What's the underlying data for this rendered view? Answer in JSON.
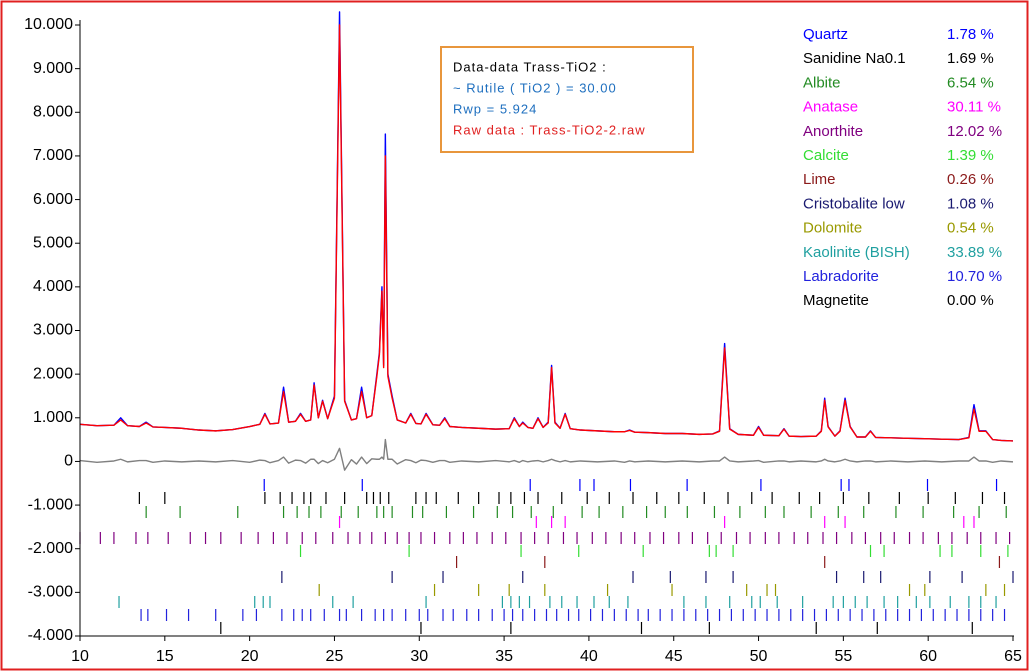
{
  "chart_data": {
    "type": "line",
    "annotations": [
      "Data-data Trass-TiO2 :",
      "~ Rutile ( TiO2 ) = 30.00",
      "Rwp = 5.924",
      "Raw data : Trass-TiO2-2.raw"
    ],
    "xlim": [
      10,
      65
    ],
    "xticks": [
      10,
      15,
      20,
      25,
      30,
      35,
      40,
      45,
      50,
      55,
      60,
      65
    ],
    "ylim": [
      -4000,
      10000
    ],
    "yticks": [
      {
        "value": 10000,
        "label": "10.000"
      },
      {
        "value": 9000,
        "label": "9.000"
      },
      {
        "value": 8000,
        "label": "8.000"
      },
      {
        "value": 7000,
        "label": "7.000"
      },
      {
        "value": 6000,
        "label": "6.000"
      },
      {
        "value": 5000,
        "label": "5.000"
      },
      {
        "value": 4000,
        "label": "4.000"
      },
      {
        "value": 3000,
        "label": "3.000"
      },
      {
        "value": 2000,
        "label": "2.000"
      },
      {
        "value": 1000,
        "label": "1.000"
      },
      0,
      {
        "value": -1000,
        "label": "-1.000"
      },
      {
        "value": -2000,
        "label": "-2.000"
      },
      {
        "value": -3000,
        "label": "-3.000"
      },
      {
        "value": -4000,
        "label": "-4.000"
      }
    ],
    "x": [
      10,
      11,
      12,
      12.4,
      12.8,
      13.5,
      13.9,
      14.3,
      15,
      16,
      17,
      18,
      19,
      20,
      20.6,
      20.9,
      21.2,
      21.7,
      22.0,
      22.3,
      22.7,
      23.0,
      23.3,
      23.6,
      23.8,
      24.05,
      24.3,
      24.6,
      25.0,
      25.3,
      25.6,
      26.0,
      26.3,
      26.6,
      26.9,
      27.2,
      27.5,
      27.65,
      27.8,
      27.9,
      28.0,
      28.15,
      28.4,
      28.7,
      29.2,
      29.5,
      29.8,
      30.1,
      30.4,
      30.8,
      31.2,
      31.5,
      31.8,
      32.5,
      33.5,
      34.5,
      35.3,
      35.6,
      35.9,
      36.1,
      36.4,
      36.7,
      37.0,
      37.3,
      37.6,
      37.8,
      38.0,
      38.3,
      38.6,
      38.9,
      39.5,
      40.5,
      41.5,
      42.1,
      42.4,
      42.7,
      43.5,
      44.5,
      45.5,
      46.5,
      47.3,
      47.7,
      48.0,
      48.3,
      48.8,
      49.7,
      50.0,
      50.3,
      51.2,
      51.5,
      51.8,
      52.5,
      53.4,
      53.7,
      53.9,
      54.1,
      54.5,
      54.8,
      55.1,
      55.4,
      55.8,
      56.3,
      56.6,
      56.9,
      57.8,
      58.8,
      59.8,
      60.8,
      61.8,
      62.4,
      62.7,
      63.0,
      63.4,
      63.8,
      64.3,
      65
    ],
    "series": [
      {
        "color": "#0000ff",
        "values": [
          850,
          820,
          830,
          1000,
          820,
          800,
          900,
          790,
          780,
          760,
          720,
          700,
          730,
          800,
          850,
          1100,
          860,
          880,
          1700,
          900,
          920,
          1100,
          920,
          950,
          1800,
          1000,
          1400,
          980,
          1500,
          10300,
          1400,
          950,
          980,
          1700,
          1000,
          1050,
          2000,
          2500,
          4000,
          2200,
          7500,
          2000,
          1500,
          950,
          880,
          1100,
          870,
          860,
          1100,
          840,
          830,
          1000,
          800,
          780,
          760,
          740,
          750,
          1000,
          800,
          900,
          780,
          760,
          1000,
          780,
          900,
          2200,
          900,
          760,
          1100,
          750,
          720,
          700,
          680,
          680,
          720,
          670,
          660,
          640,
          640,
          620,
          630,
          700,
          2700,
          750,
          620,
          600,
          800,
          600,
          590,
          750,
          580,
          570,
          580,
          700,
          1450,
          800,
          580,
          700,
          1450,
          800,
          560,
          560,
          700,
          550,
          540,
          530,
          520,
          510,
          500,
          550,
          1300,
          700,
          700,
          500,
          480,
          470
        ]
      },
      {
        "color": "#ff0000",
        "values": [
          850,
          820,
          830,
          950,
          820,
          800,
          880,
          790,
          780,
          760,
          720,
          700,
          730,
          800,
          850,
          1080,
          860,
          880,
          1600,
          900,
          920,
          1080,
          920,
          950,
          1750,
          1000,
          1380,
          980,
          1450,
          10000,
          1380,
          950,
          980,
          1600,
          1000,
          1050,
          1950,
          2450,
          3900,
          2150,
          7000,
          1950,
          1450,
          950,
          880,
          1080,
          870,
          860,
          1080,
          840,
          830,
          980,
          800,
          780,
          760,
          740,
          750,
          980,
          800,
          880,
          780,
          760,
          980,
          780,
          880,
          2150,
          880,
          760,
          1080,
          750,
          720,
          700,
          680,
          680,
          710,
          670,
          660,
          640,
          640,
          620,
          630,
          690,
          2600,
          740,
          620,
          600,
          780,
          600,
          590,
          740,
          580,
          570,
          580,
          690,
          1400,
          790,
          580,
          690,
          1400,
          790,
          560,
          560,
          690,
          550,
          540,
          530,
          520,
          510,
          500,
          540,
          1200,
          690,
          690,
          500,
          480,
          470
        ]
      },
      {
        "color": "#808080",
        "values": [
          20,
          -20,
          10,
          50,
          -10,
          20,
          20,
          -20,
          10,
          -10,
          10,
          -10,
          20,
          -20,
          30,
          20,
          -30,
          20,
          100,
          -40,
          30,
          20,
          -40,
          50,
          50,
          -50,
          20,
          -30,
          50,
          300,
          -200,
          40,
          -60,
          100,
          -50,
          60,
          50,
          50,
          100,
          50,
          500,
          50,
          50,
          -60,
          40,
          20,
          -30,
          30,
          20,
          -20,
          20,
          20,
          -20,
          10,
          -10,
          20,
          -10,
          20,
          -20,
          20,
          -10,
          10,
          20,
          -10,
          20,
          50,
          20,
          -10,
          20,
          -10,
          10,
          -10,
          10,
          -20,
          10,
          -10,
          10,
          -10,
          10,
          -10,
          10,
          10,
          100,
          10,
          -10,
          10,
          20,
          -20,
          10,
          10,
          -10,
          10,
          -10,
          10,
          50,
          10,
          -10,
          10,
          50,
          10,
          -10,
          10,
          10,
          -10,
          10,
          -10,
          10,
          -10,
          10,
          10,
          100,
          10,
          10,
          -20,
          10,
          -10
        ]
      }
    ],
    "phases": [
      {
        "name": "Quartz",
        "color": "#0000ff",
        "value": 1.78,
        "value_label": "1.78 %",
        "positions": [
          20.86,
          26.64,
          36.54,
          39.47,
          40.3,
          42.45,
          45.79,
          50.14,
          54.87,
          55.33,
          59.96,
          64.03
        ]
      },
      {
        "name": "Sanidine Na0.1",
        "color": "#000000",
        "value": 1.69,
        "value_label": "1.69 %",
        "positions": [
          13.5,
          15.0,
          20.9,
          21.8,
          22.5,
          23.2,
          23.6,
          24.5,
          25.6,
          26.9,
          27.3,
          27.7,
          28.2,
          29.8,
          30.4,
          31.0,
          32.3,
          33.5,
          34.7,
          35.4,
          36.2,
          37.0,
          38.4,
          39.9,
          41.2,
          42.6,
          44.0,
          45.3,
          46.8,
          48.2,
          49.6,
          50.8,
          52.4,
          53.6,
          55.0,
          56.5,
          58.3,
          60.0,
          61.6,
          63.2,
          64.5
        ]
      },
      {
        "name": "Albite",
        "color": "#228b22",
        "value": 6.54,
        "value_label": "6.54 %",
        "positions": [
          13.9,
          15.9,
          19.3,
          22.0,
          22.8,
          23.5,
          24.2,
          25.4,
          26.4,
          27.5,
          27.9,
          28.4,
          29.6,
          30.2,
          31.6,
          33.2,
          34.6,
          35.5,
          36.6,
          37.9,
          39.6,
          40.6,
          42.0,
          43.4,
          44.5,
          45.8,
          47.4,
          48.9,
          50.4,
          51.5,
          53.1,
          54.7,
          56.2,
          58.1,
          59.7,
          61.5,
          63.0,
          64.6
        ]
      },
      {
        "name": "Anatase",
        "color": "#ff00ff",
        "value": 30.11,
        "value_label": "30.11 %",
        "positions": [
          25.3,
          36.9,
          37.8,
          38.6,
          48.0,
          53.9,
          55.1,
          62.1,
          62.7
        ]
      },
      {
        "name": "Anorthite",
        "color": "#800080",
        "value": 12.02,
        "value_label": "12.02 %",
        "positions": [
          10.0,
          11.2,
          12.0,
          13.3,
          14.0,
          15.2,
          16.5,
          17.4,
          18.3,
          19.5,
          20.5,
          21.4,
          22.2,
          23.1,
          23.9,
          24.9,
          25.8,
          26.5,
          27.2,
          28.0,
          28.7,
          29.4,
          30.1,
          30.9,
          31.8,
          32.6,
          33.4,
          34.3,
          35.1,
          36.0,
          36.8,
          37.6,
          38.5,
          39.3,
          40.2,
          41.0,
          41.9,
          42.7,
          43.6,
          44.4,
          45.3,
          46.1,
          47.0,
          47.8,
          48.7,
          49.5,
          50.4,
          51.2,
          52.1,
          52.9,
          53.8,
          54.6,
          55.5,
          56.3,
          57.2,
          58.0,
          58.9,
          59.7,
          60.6,
          61.4,
          62.3,
          63.1,
          64.0,
          64.8
        ]
      },
      {
        "name": "Calcite",
        "color": "#33dd33",
        "value": 1.39,
        "value_label": "1.39 %",
        "positions": [
          23.0,
          29.4,
          36.0,
          39.4,
          43.2,
          47.1,
          47.5,
          48.5,
          56.6,
          57.4,
          60.7,
          61.4,
          63.1,
          64.7
        ]
      },
      {
        "name": "Lime",
        "color": "#8b1a1a",
        "value": 0.26,
        "value_label": "0.26 %",
        "positions": [
          32.2,
          37.4,
          53.9,
          64.2
        ]
      },
      {
        "name": "Cristobalite low",
        "color": "#191970",
        "value": 1.08,
        "value_label": "1.08 %",
        "positions": [
          21.9,
          28.4,
          31.4,
          36.1,
          42.6,
          44.8,
          46.9,
          48.5,
          54.6,
          56.2,
          57.2,
          60.1,
          62.0,
          65.0
        ]
      },
      {
        "name": "Dolomite",
        "color": "#999900",
        "value": 0.54,
        "value_label": "0.54 %",
        "positions": [
          24.1,
          30.9,
          33.5,
          35.3,
          37.4,
          41.1,
          44.9,
          49.3,
          50.5,
          51.0,
          58.9,
          59.8,
          63.4,
          64.5
        ]
      },
      {
        "name": "Kaolinite (BISH)",
        "color": "#20a0a0",
        "value": 33.89,
        "value_label": "33.89 %",
        "positions": [
          12.3,
          20.3,
          20.8,
          21.2,
          24.9,
          26.1,
          30.4,
          34.9,
          35.4,
          35.9,
          36.5,
          37.7,
          38.4,
          39.3,
          40.3,
          41.2,
          42.3,
          45.6,
          46.9,
          48.3,
          49.6,
          50.1,
          51.1,
          52.6,
          54.4,
          55.0,
          55.7,
          56.4,
          57.4,
          58.2,
          59.3,
          60.1,
          61.3,
          62.4,
          63.1,
          64.0
        ]
      },
      {
        "name": "Labradorite",
        "color": "#2222dd",
        "value": 10.7,
        "value_label": "10.70 %",
        "positions": [
          13.6,
          14.0,
          15.1,
          16.4,
          18.0,
          19.6,
          20.4,
          21.9,
          22.6,
          23.1,
          23.6,
          24.4,
          25.3,
          25.7,
          26.6,
          27.4,
          27.9,
          28.4,
          29.2,
          30.0,
          30.5,
          31.4,
          32.0,
          32.8,
          33.5,
          34.3,
          35.0,
          35.5,
          36.1,
          36.8,
          37.5,
          38.1,
          38.8,
          39.4,
          40.1,
          40.8,
          41.5,
          42.2,
          42.9,
          43.5,
          44.2,
          44.9,
          45.6,
          46.3,
          47.0,
          47.7,
          48.4,
          49.1,
          49.8,
          50.5,
          51.2,
          51.9,
          52.6,
          53.3,
          54.0,
          54.7,
          55.4,
          56.1,
          56.8,
          57.5,
          58.2,
          58.9,
          59.6,
          60.3,
          61.0,
          61.7,
          62.4,
          63.1,
          63.8,
          64.5
        ]
      },
      {
        "name": "Magnetite",
        "color": "#000000",
        "value": 0.0,
        "value_label": "0.00 %",
        "positions": [
          18.3,
          30.1,
          35.4,
          43.1,
          47.1,
          53.4,
          57.0,
          62.6
        ]
      }
    ]
  }
}
